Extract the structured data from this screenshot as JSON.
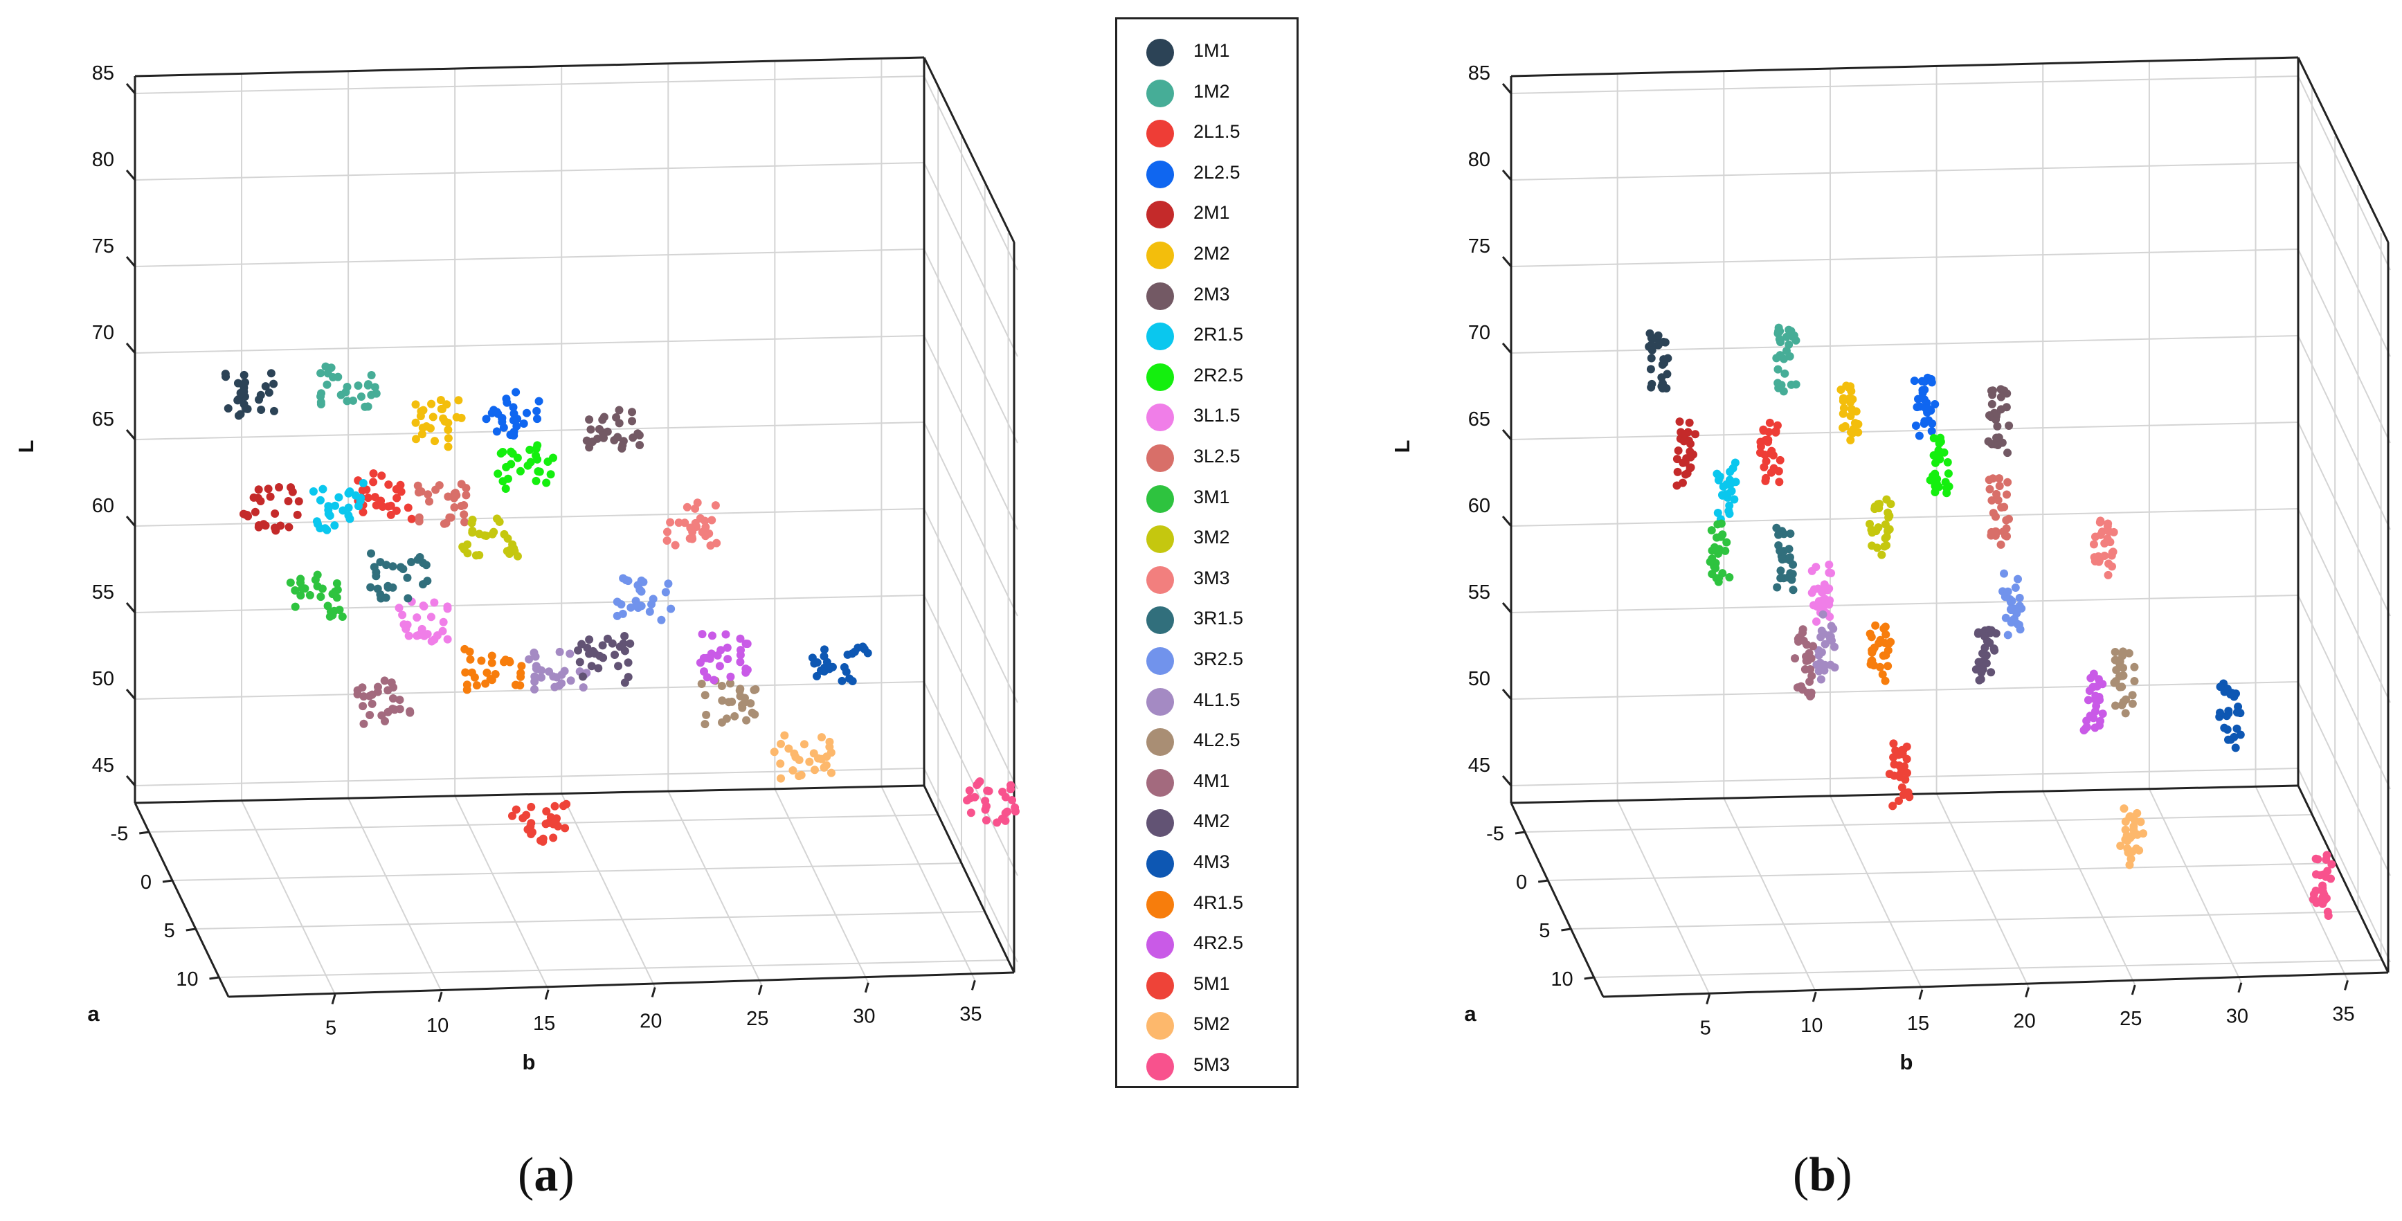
{
  "chart_data": [
    {
      "panel": "(a)",
      "type": "scatter",
      "projection": "3d",
      "xlabel": "b",
      "ylabel": "a",
      "zlabel": "L",
      "xlim": [
        0,
        37
      ],
      "ylim": [
        -8,
        12
      ],
      "zlim": [
        44,
        86
      ],
      "xticks": [
        "5",
        "10",
        "15",
        "20",
        "25",
        "30",
        "35"
      ],
      "yticks": [
        "-5",
        "0",
        "5",
        "10"
      ],
      "zticks": [
        "45",
        "50",
        "55",
        "60",
        "65",
        "70",
        "75",
        "80",
        "85"
      ],
      "series": [
        {
          "name": "1M1",
          "b": 3.5,
          "a": 1,
          "L": 72.5
        },
        {
          "name": "1M2",
          "b": 8.5,
          "a": -1,
          "L": 71.5
        },
        {
          "name": "2L1.5",
          "b": 9.5,
          "a": 2,
          "L": 67
        },
        {
          "name": "2L2.5",
          "b": 16.5,
          "a": -2,
          "L": 69.5
        },
        {
          "name": "2M1",
          "b": 4.0,
          "a": 3,
          "L": 67
        },
        {
          "name": "2M2",
          "b": 12.5,
          "a": -1,
          "L": 69.5
        },
        {
          "name": "2M3",
          "b": 21.0,
          "a": -1,
          "L": 69
        },
        {
          "name": "2R1.5",
          "b": 7.5,
          "a": 2,
          "L": 66.5
        },
        {
          "name": "2R2.5",
          "b": 16.5,
          "a": 0,
          "L": 67.5
        },
        {
          "name": "3L1.5",
          "b": 11.0,
          "a": 4,
          "L": 61
        },
        {
          "name": "3L2.5",
          "b": 12.0,
          "a": 2,
          "L": 66.5
        },
        {
          "name": "3M1",
          "b": 6.0,
          "a": 4,
          "L": 62.5
        },
        {
          "name": "3M2",
          "b": 14.5,
          "a": 2,
          "L": 64.5
        },
        {
          "name": "3M3",
          "b": 24.0,
          "a": 1,
          "L": 64.5
        },
        {
          "name": "3R1.5",
          "b": 10.0,
          "a": 3,
          "L": 63
        },
        {
          "name": "3R2.5",
          "b": 21.5,
          "a": 3,
          "L": 61.5
        },
        {
          "name": "4L1.5",
          "b": 17.0,
          "a": 5,
          "L": 58.5
        },
        {
          "name": "4L2.5",
          "b": 25.0,
          "a": 5,
          "L": 56.5
        },
        {
          "name": "4M1",
          "b": 8.5,
          "a": 6,
          "L": 57.5
        },
        {
          "name": "4M2",
          "b": 19.5,
          "a": 4,
          "L": 58.5
        },
        {
          "name": "4M3",
          "b": 30.5,
          "a": 4,
          "L": 58
        },
        {
          "name": "4R1.5",
          "b": 14.0,
          "a": 5,
          "L": 58.5
        },
        {
          "name": "4R2.5",
          "b": 25.0,
          "a": 3,
          "L": 58
        },
        {
          "name": "5M1",
          "b": 15.5,
          "a": 8,
          "L": 51.5
        },
        {
          "name": "5M2",
          "b": 28.5,
          "a": 5,
          "L": 53
        },
        {
          "name": "5M3",
          "b": 37.0,
          "a": 6,
          "L": 51
        }
      ]
    },
    {
      "panel": "(b)",
      "type": "scatter",
      "projection": "3d",
      "xlabel": "b",
      "ylabel": "a",
      "zlabel": "L",
      "xlim": [
        0,
        37
      ],
      "ylim": [
        -8,
        12
      ],
      "zlim": [
        44,
        86
      ],
      "xticks": [
        "5",
        "10",
        "15",
        "20",
        "25",
        "30",
        "35"
      ],
      "yticks": [
        "-5",
        "0",
        "5",
        "10"
      ],
      "zticks": [
        "45",
        "50",
        "55",
        "60",
        "65",
        "70",
        "75",
        "80",
        "85"
      ],
      "series": [
        {
          "name": "1M1",
          "b": 5.0,
          "a": 1,
          "L": 74.5
        },
        {
          "name": "1M2",
          "b": 11.0,
          "a": 1,
          "L": 74.5
        },
        {
          "name": "2L1.5",
          "b": 10.0,
          "a": 2,
          "L": 69.5
        },
        {
          "name": "2L2.5",
          "b": 17.5,
          "a": 1,
          "L": 71.5
        },
        {
          "name": "2M1",
          "b": 6.0,
          "a": 2,
          "L": 69.5
        },
        {
          "name": "2M2",
          "b": 14.0,
          "a": 1,
          "L": 71.5
        },
        {
          "name": "2M3",
          "b": 21.0,
          "a": 1,
          "L": 70.5
        },
        {
          "name": "2R1.5",
          "b": 8.0,
          "a": 2,
          "L": 67.5
        },
        {
          "name": "2R2.5",
          "b": 18.0,
          "a": 2,
          "L": 68.5
        },
        {
          "name": "3L1.5",
          "b": 12.0,
          "a": 4,
          "L": 62.5
        },
        {
          "name": "3L2.5",
          "b": 20.5,
          "a": 3,
          "L": 66.5
        },
        {
          "name": "3M1",
          "b": 7.5,
          "a": 3,
          "L": 64.5
        },
        {
          "name": "3M2",
          "b": 15.0,
          "a": 3,
          "L": 65.5
        },
        {
          "name": "3M3",
          "b": 25.5,
          "a": 3,
          "L": 64.5
        },
        {
          "name": "3R1.5",
          "b": 10.5,
          "a": 3,
          "L": 64
        },
        {
          "name": "3R2.5",
          "b": 21.0,
          "a": 4,
          "L": 61.5
        },
        {
          "name": "4L1.5",
          "b": 12.0,
          "a": 5,
          "L": 60
        },
        {
          "name": "4L2.5",
          "b": 26.0,
          "a": 5,
          "L": 57.5
        },
        {
          "name": "4M1",
          "b": 11.0,
          "a": 5,
          "L": 59
        },
        {
          "name": "4M2",
          "b": 19.5,
          "a": 5,
          "L": 59
        },
        {
          "name": "4M3",
          "b": 31.0,
          "a": 5,
          "L": 55.5
        },
        {
          "name": "4R1.5",
          "b": 14.5,
          "a": 5,
          "L": 59.5
        },
        {
          "name": "4R2.5",
          "b": 24.5,
          "a": 5,
          "L": 56.5
        },
        {
          "name": "5M1",
          "b": 15.0,
          "a": 7,
          "L": 53.5
        },
        {
          "name": "5M2",
          "b": 25.5,
          "a": 9,
          "L": 51
        },
        {
          "name": "5M3",
          "b": 34.0,
          "a": 11,
          "L": 49
        }
      ]
    }
  ],
  "legend": {
    "items": [
      {
        "label": "1M1",
        "color": "#2c4356"
      },
      {
        "label": "1M2",
        "color": "#46ad97"
      },
      {
        "label": "2L1.5",
        "color": "#ee3d36"
      },
      {
        "label": "2L2.5",
        "color": "#0f66f0"
      },
      {
        "label": "2M1",
        "color": "#c42a2a"
      },
      {
        "label": "2M2",
        "color": "#f3be0c"
      },
      {
        "label": "2M3",
        "color": "#735964"
      },
      {
        "label": "2R1.5",
        "color": "#0ac7ee"
      },
      {
        "label": "2R2.5",
        "color": "#14ef0e"
      },
      {
        "label": "3L1.5",
        "color": "#f07ee8"
      },
      {
        "label": "3L2.5",
        "color": "#d86f69"
      },
      {
        "label": "3M1",
        "color": "#2ec33f"
      },
      {
        "label": "3M2",
        "color": "#c5c70f"
      },
      {
        "label": "3M3",
        "color": "#f27f7e"
      },
      {
        "label": "3R1.5",
        "color": "#316f7c"
      },
      {
        "label": "3R2.5",
        "color": "#7193ec"
      },
      {
        "label": "4L1.5",
        "color": "#a48ac3"
      },
      {
        "label": "4L2.5",
        "color": "#a98e74"
      },
      {
        "label": "4M1",
        "color": "#a36a7e"
      },
      {
        "label": "4M2",
        "color": "#625374"
      },
      {
        "label": "4M3",
        "color": "#0d57b3"
      },
      {
        "label": "4R1.5",
        "color": "#f77d0c"
      },
      {
        "label": "4R2.5",
        "color": "#c95ae7"
      },
      {
        "label": "5M1",
        "color": "#ee4338"
      },
      {
        "label": "5M2",
        "color": "#fdb86c"
      },
      {
        "label": "5M3",
        "color": "#f8528d"
      }
    ]
  },
  "panels": {
    "a_label": "a",
    "b_label": "b"
  }
}
